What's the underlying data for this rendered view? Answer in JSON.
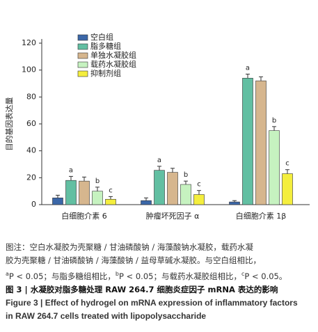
{
  "chart_data": {
    "type": "bar",
    "ylabel": "目的基因表达量",
    "categories": [
      "白细胞介素 6",
      "肿瘤坏死因子 α",
      "白细胞介素 1β"
    ],
    "ylim": [
      0,
      120
    ],
    "yticks": [
      0,
      20,
      40,
      60,
      80,
      100,
      120
    ],
    "series": [
      {
        "name": "空白组",
        "color": "#3b67a8",
        "values": [
          5,
          3,
          2
        ],
        "errors": [
          2,
          2,
          1
        ]
      },
      {
        "name": "脂多糖组",
        "color": "#62bfa2",
        "values": [
          18,
          25.5,
          94
        ],
        "errors": [
          3,
          3,
          3
        ],
        "significance": [
          "a",
          "a",
          "a"
        ]
      },
      {
        "name": "单独水凝胶组",
        "color": "#d6b68e",
        "values": [
          17.5,
          24,
          92
        ],
        "errors": [
          3,
          3,
          3
        ]
      },
      {
        "name": "载药水凝胶组",
        "color": "#c6f2c0",
        "values": [
          10,
          15,
          55
        ],
        "errors": [
          3,
          2.5,
          3
        ],
        "significance": [
          "b",
          "b",
          "b"
        ]
      },
      {
        "name": "抑制剂组",
        "color": "#f4ee3e",
        "values": [
          4,
          7.5,
          23
        ],
        "errors": [
          2,
          3,
          3
        ],
        "significance": [
          "c",
          "c",
          "c"
        ]
      }
    ]
  },
  "caption": {
    "note": [
      "图注：空白水凝胶为壳聚糖 / 甘油磷酸钠 / 海藻酸钠水凝胶，载药水凝",
      "胶为壳聚糖 / 甘油磷酸钠 / 海藻酸钠 / 益母草碱水凝胶。与空白组相比，"
    ],
    "note_sig": [
      "a",
      "P < 0.05；与脂多糖组相比，",
      "b",
      "P < 0.05；与载药水凝胶组相比，",
      "c",
      "P < 0.05。"
    ],
    "title_cn": "图 3 | 水凝胶对脂多糖处理 RAW 264.7 细胞炎症因子 mRNA 表达的影响",
    "title_en": [
      "Figure 3 | Effect of hydrogel on mRNA expression of inflammatory factors",
      "in RAW 264.7 cells treated with lipopolysaccharide"
    ]
  }
}
